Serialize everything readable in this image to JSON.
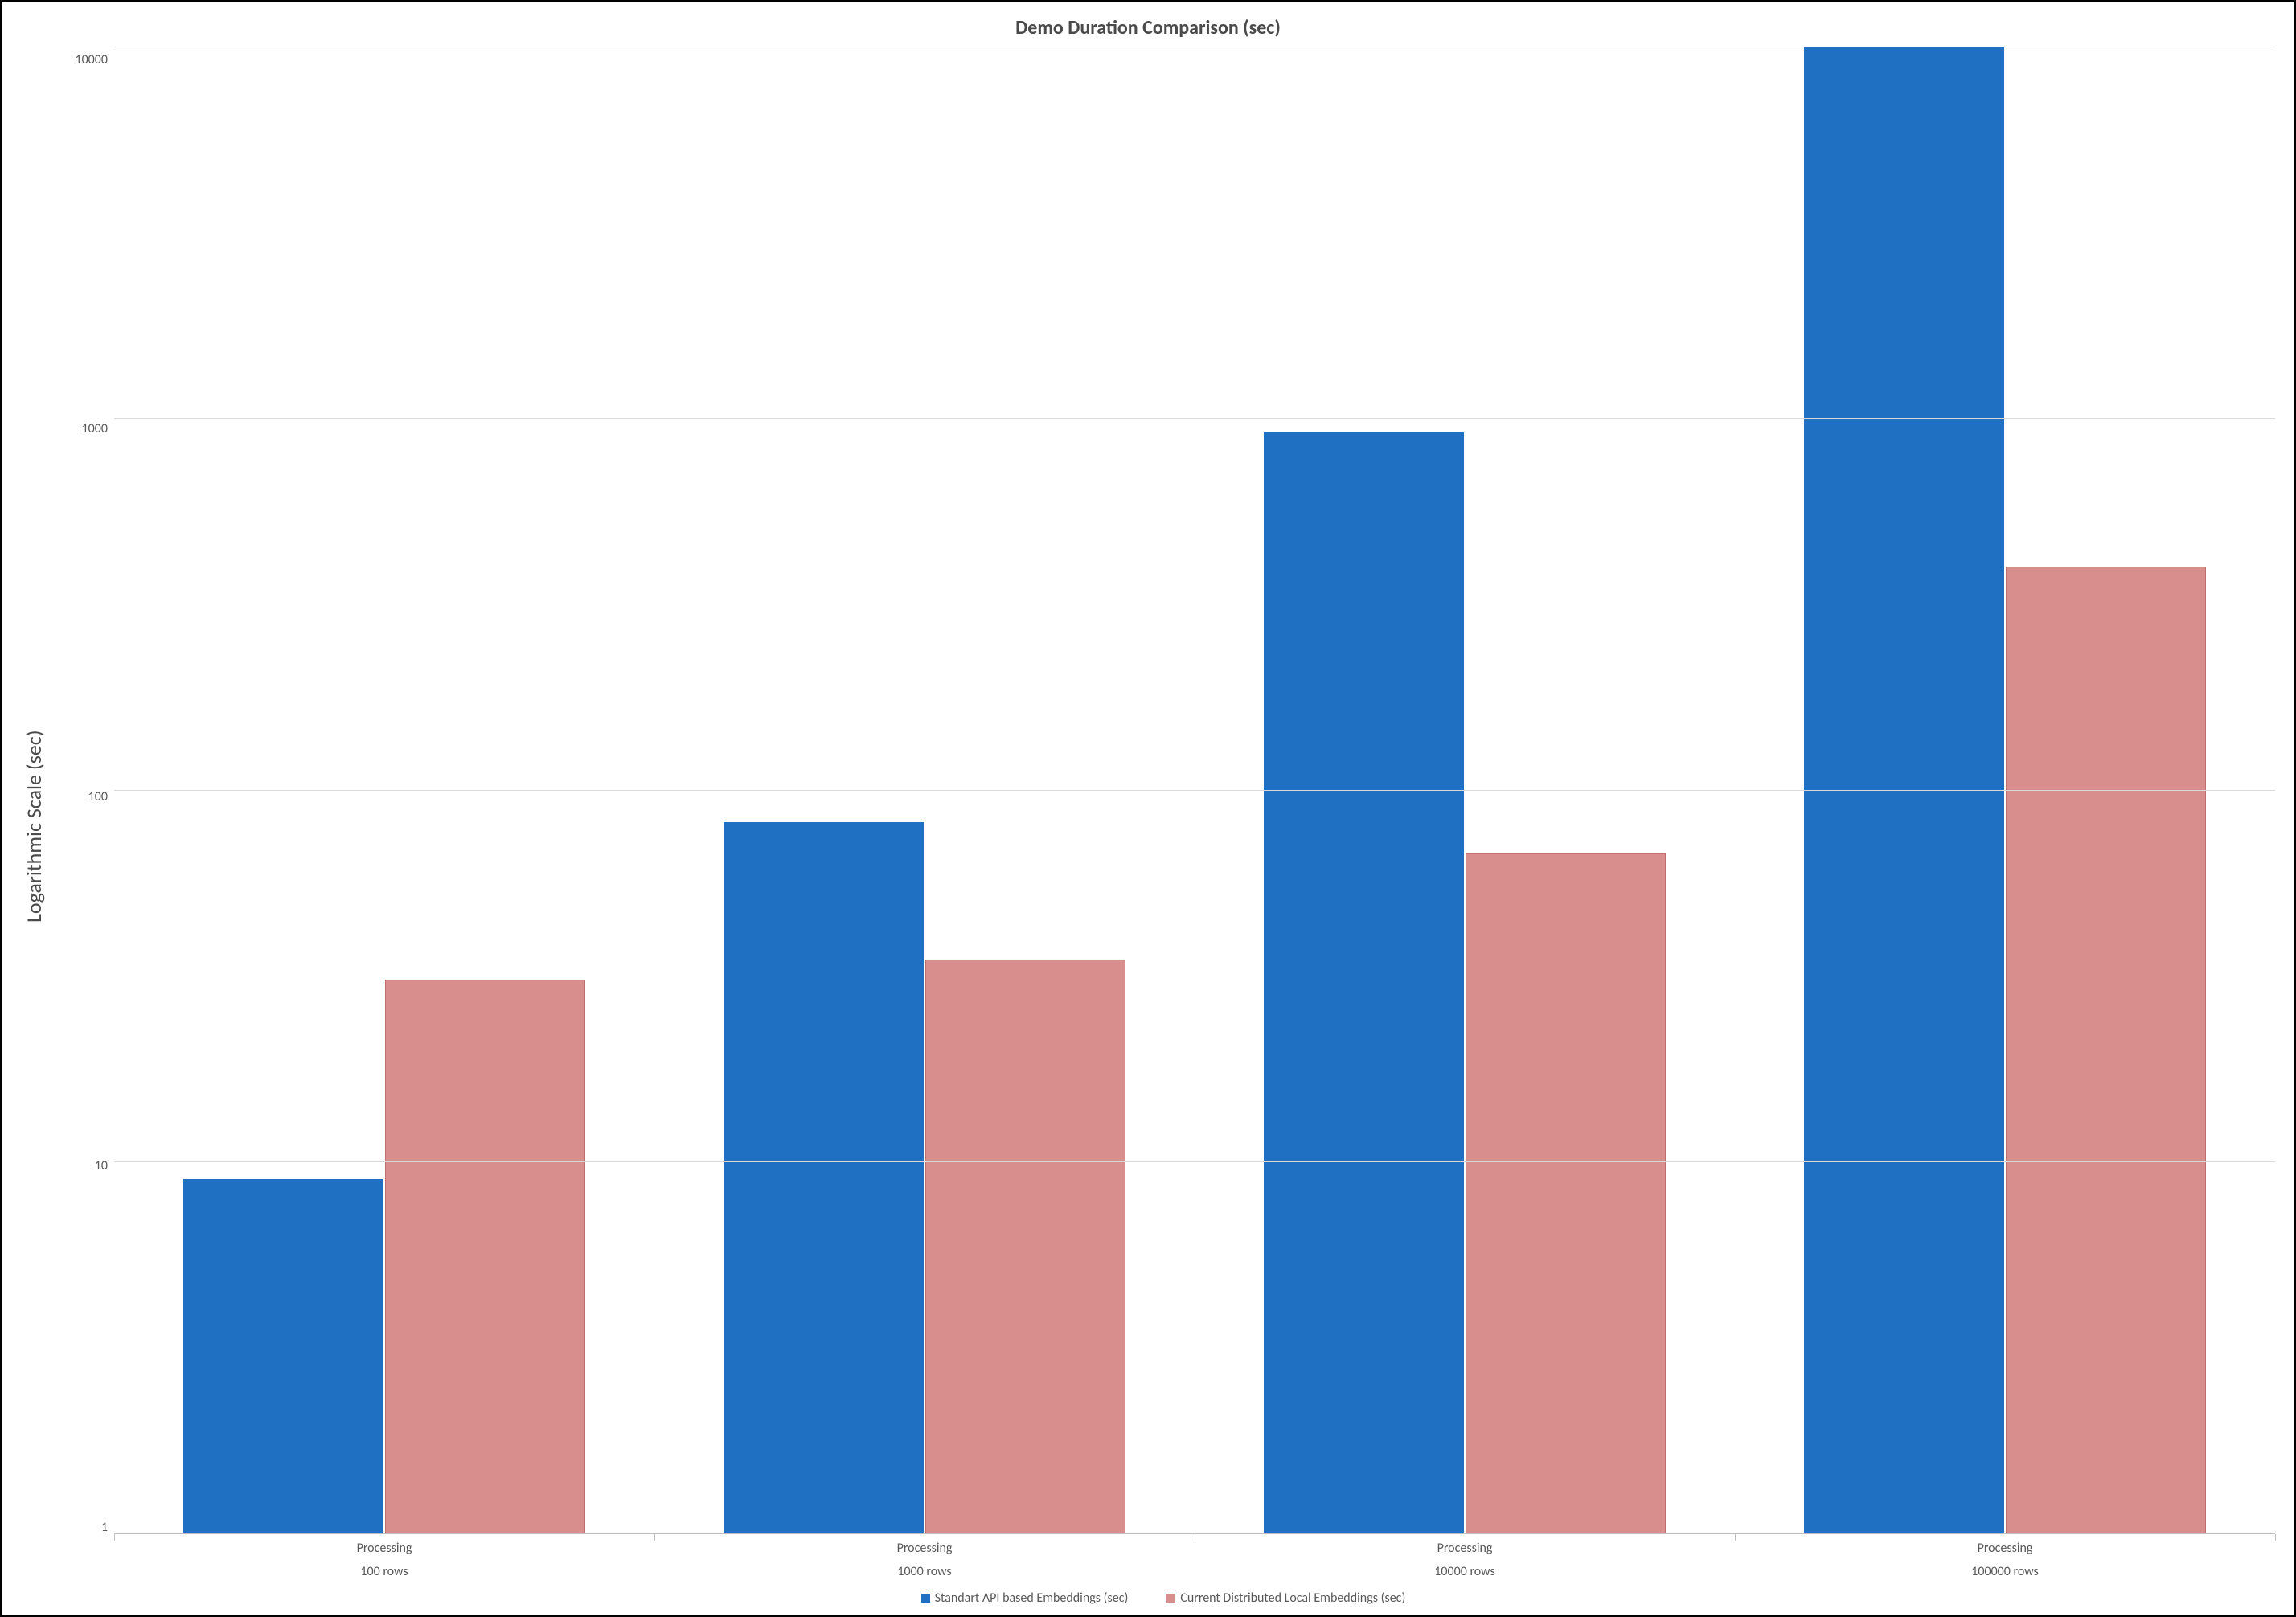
{
  "chart": {
    "type": "bar",
    "title": "Demo Duration Comparison (sec)",
    "title_fontsize": 24,
    "y_axis_title": "Logarithmic Scale (sec)",
    "y_axis_title_fontsize": 26,
    "tick_label_fontsize": 16,
    "legend_fontsize": 16,
    "y_scale": "log",
    "y_min": 1,
    "y_max": 10000,
    "y_ticks": [
      10000,
      1000,
      100,
      10,
      1
    ],
    "y_tick_labels": [
      "10000",
      "1000",
      "100",
      "10",
      "1"
    ],
    "grid_color": "#d9d9d9",
    "axis_color": "#bfbfbf",
    "background_color": "#ffffff",
    "text_color": "#595959",
    "categories": [
      {
        "label_line1": "Processing",
        "label_line2": "100 rows"
      },
      {
        "label_line1": "Processing",
        "label_line2": "1000 rows"
      },
      {
        "label_line1": "Processing",
        "label_line2": "10000 rows"
      },
      {
        "label_line1": "Processing",
        "label_line2": "100000 rows"
      }
    ],
    "series": [
      {
        "name": "Standart API based Embeddings (sec)",
        "color": "#1f6fc2",
        "border_color": "#1f6fc2",
        "values": [
          9,
          82,
          920,
          10000
        ]
      },
      {
        "name": "Current Distributed Local Embeddings (sec)",
        "color": "#d98e8e",
        "border_color": "#c06f6f",
        "values": [
          31,
          35,
          68,
          400
        ]
      }
    ],
    "bar_group_width_pct": 74
  }
}
